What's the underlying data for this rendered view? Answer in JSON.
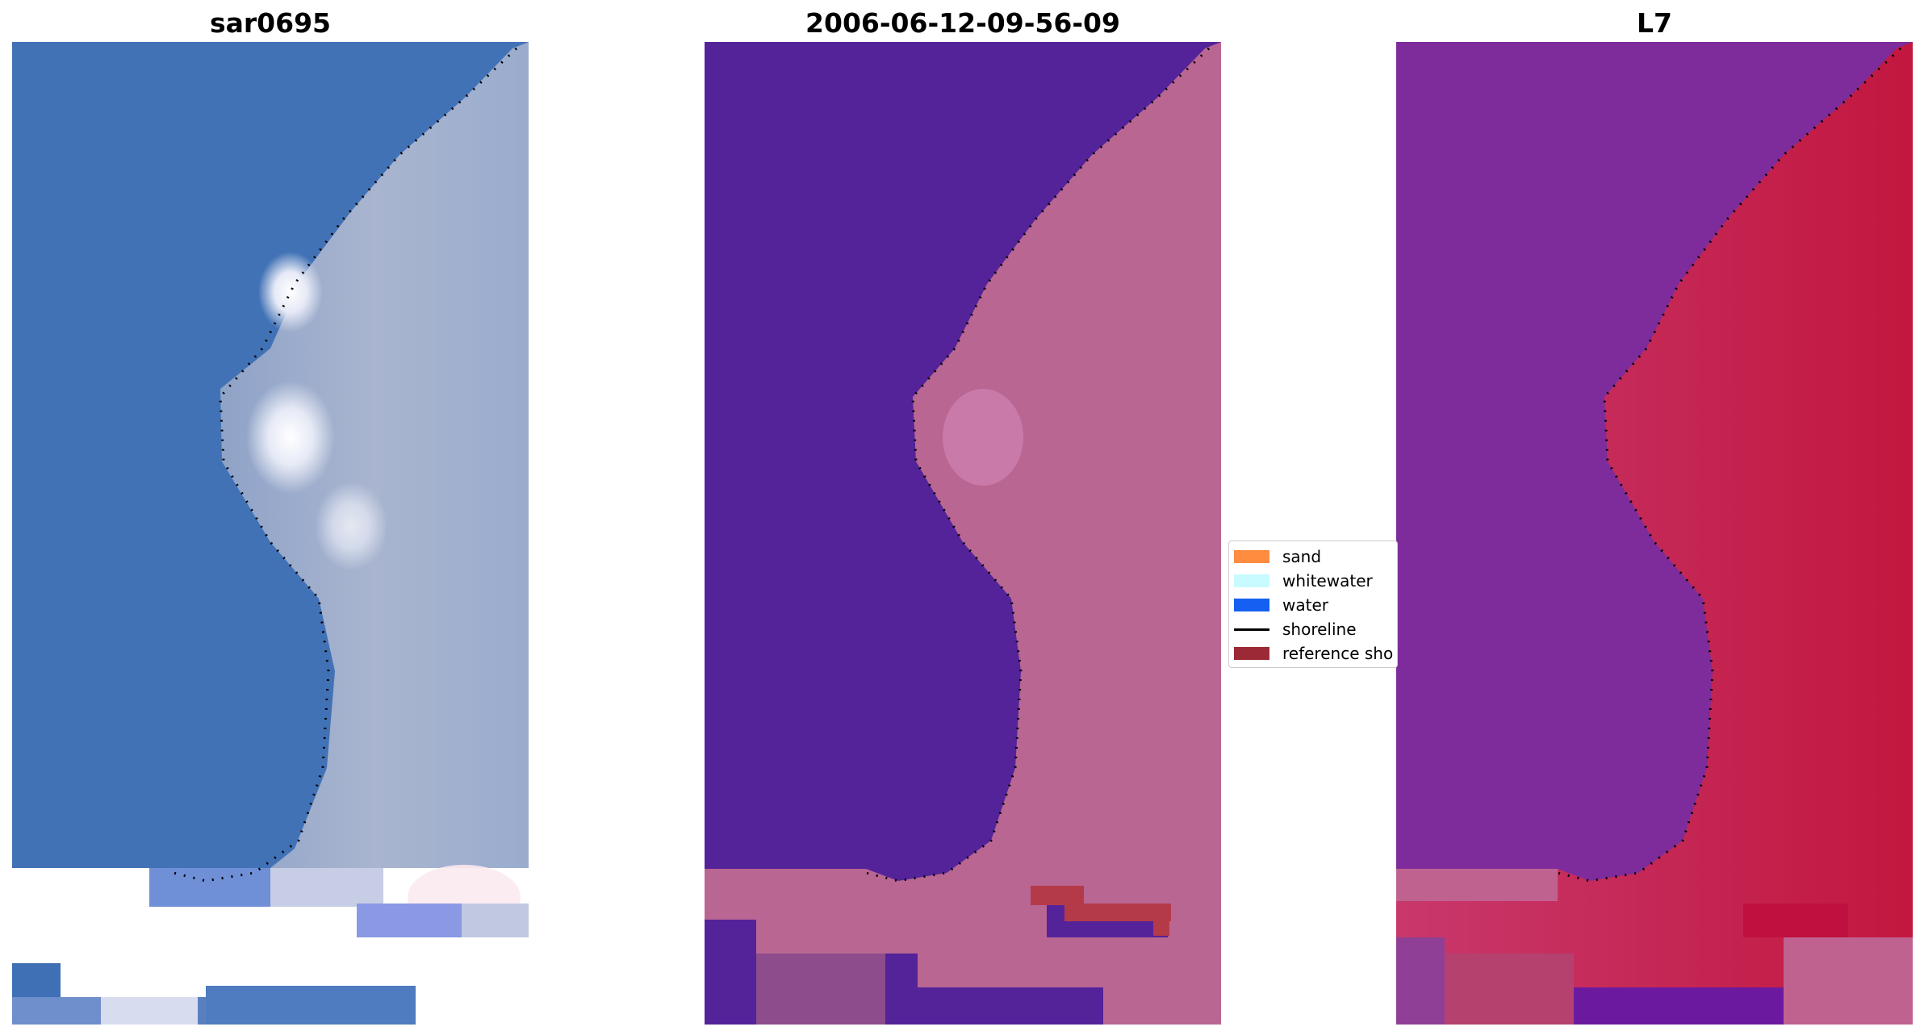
{
  "panels": [
    {
      "title": "sar0695"
    },
    {
      "title": "2006-06-12-09-56-09"
    },
    {
      "title": "L7"
    }
  ],
  "legend": {
    "items": [
      {
        "label": "sand",
        "color": "#ff8c3f"
      },
      {
        "label": "whitewater",
        "color": "#c8fbff"
      },
      {
        "label": "water",
        "color": "#1460f0"
      },
      {
        "label": "shoreline",
        "color": "#000000"
      },
      {
        "label": "reference sho",
        "color": "#9b2a36"
      }
    ]
  },
  "colors": {
    "ocean_rgb": "#4272b6",
    "land_rgb": "#a9b5cf",
    "class_water": "#54239a",
    "class_land": "#b96693",
    "class_reference": "#b53a48",
    "ndwi_water": "#7e2c9b",
    "ndwi_land": "#c2204f"
  }
}
